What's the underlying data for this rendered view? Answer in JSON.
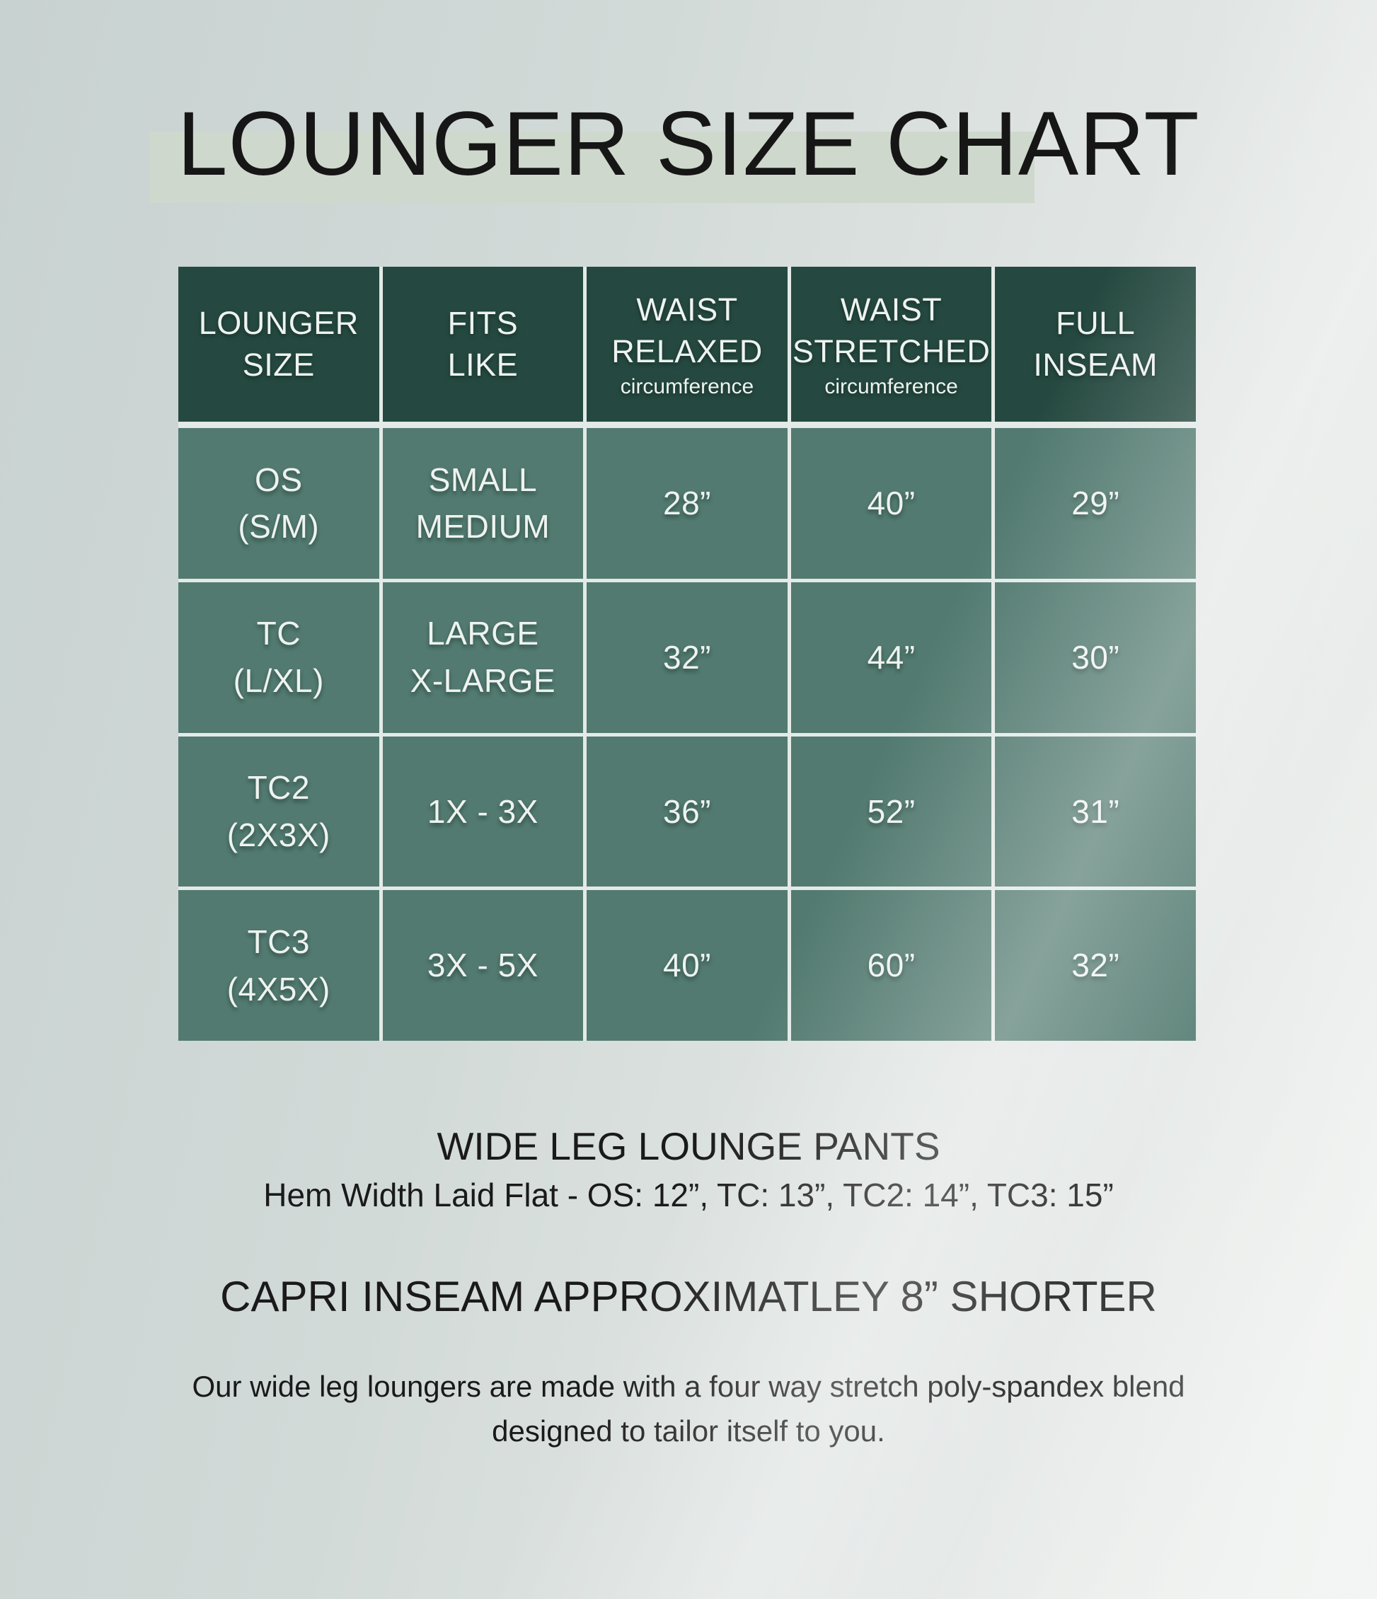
{
  "title": "LOUNGER SIZE CHART",
  "colors": {
    "header_bg": "#254940",
    "body_bg": "#527a70",
    "grid_line": "#e3eae7",
    "band": "#cfd8cc",
    "cell_text": "#eef3f0",
    "ink": "#161616"
  },
  "table": {
    "headers": [
      {
        "label": "LOUNGER\nSIZE",
        "sub": ""
      },
      {
        "label": "FITS\nLIKE",
        "sub": ""
      },
      {
        "label": "WAIST\nRELAXED",
        "sub": "circumference"
      },
      {
        "label": "WAIST\nSTRETCHED",
        "sub": "circumference"
      },
      {
        "label": "FULL\nINSEAM",
        "sub": ""
      }
    ],
    "rows": [
      {
        "size": "OS\n(S/M)",
        "fits": "SMALL\nMEDIUM",
        "waist_relaxed": "28”",
        "waist_stretched": "40”",
        "full_inseam": "29”"
      },
      {
        "size": "TC\n(L/XL)",
        "fits": "LARGE\nX-LARGE",
        "waist_relaxed": "32”",
        "waist_stretched": "44”",
        "full_inseam": "30”"
      },
      {
        "size": "TC2\n(2X3X)",
        "fits": "1X - 3X",
        "waist_relaxed": "36”",
        "waist_stretched": "52”",
        "full_inseam": "31”"
      },
      {
        "size": "TC3\n(4X5X)",
        "fits": "3X - 5X",
        "waist_relaxed": "40”",
        "waist_stretched": "60”",
        "full_inseam": "32”"
      }
    ]
  },
  "footer": {
    "product_heading": "WIDE LEG LOUNGE PANTS",
    "hem_note": "Hem Width Laid Flat - OS: 12”, TC: 13”, TC2: 14”, TC3: 15”",
    "capri_note": "CAPRI INSEAM APPROXIMATLEY 8” SHORTER",
    "blurb": "Our wide leg loungers are made with a four way stretch poly-spandex blend\ndesigned to tailor itself to you."
  },
  "chart_data": {
    "type": "table",
    "title": "LOUNGER SIZE CHART",
    "columns": [
      "LOUNGER SIZE",
      "FITS LIKE",
      "WAIST RELAXED (circumference)",
      "WAIST STRETCHED (circumference)",
      "FULL INSEAM"
    ],
    "rows": [
      [
        "OS (S/M)",
        "SMALL MEDIUM",
        "28”",
        "40”",
        "29”"
      ],
      [
        "TC (L/XL)",
        "LARGE X-LARGE",
        "32”",
        "44”",
        "30”"
      ],
      [
        "TC2 (2X3X)",
        "1X - 3X",
        "36”",
        "52”",
        "31”"
      ],
      [
        "TC3 (4X5X)",
        "3X - 5X",
        "40”",
        "60”",
        "32”"
      ]
    ],
    "notes": [
      "WIDE LEG LOUNGE PANTS",
      "Hem Width Laid Flat - OS: 12”, TC: 13”, TC2: 14”, TC3: 15”",
      "CAPRI INSEAM APPROXIMATLEY 8” SHORTER",
      "Our wide leg loungers are made with a four way stretch poly-spandex blend designed to tailor itself to you."
    ]
  }
}
